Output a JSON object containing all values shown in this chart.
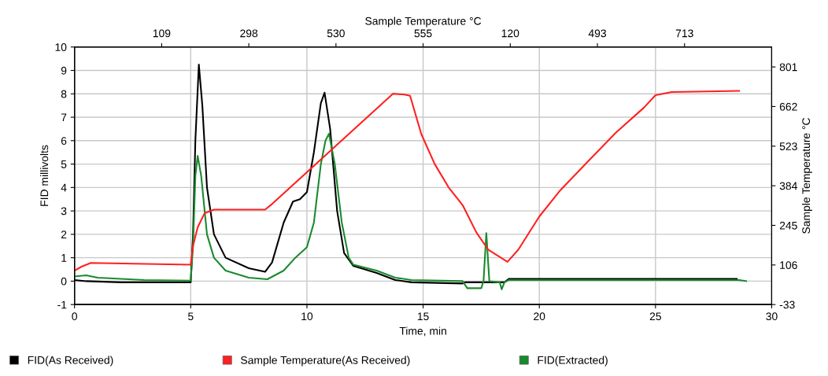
{
  "chart_data": {
    "type": "line",
    "xlabel": "Time, min",
    "ylabel": "FID millivolts",
    "y2label": "Sample Temperature °C",
    "x2label": "Sample Temperature °C",
    "xlim": [
      0,
      30
    ],
    "xticks": [
      0,
      5,
      10,
      15,
      20,
      25,
      30
    ],
    "ylim": [
      -1,
      10
    ],
    "yticks": [
      -1,
      0,
      1,
      2,
      3,
      4,
      5,
      6,
      7,
      8,
      9,
      10
    ],
    "y2lim": [
      -33,
      871
    ],
    "y2ticks": [
      -33,
      106,
      245,
      384,
      523,
      662,
      801
    ],
    "annotations": [
      "109",
      "298",
      "530",
      "555",
      "120",
      "493",
      "713"
    ],
    "grid": true,
    "legend": "bottom",
    "marker": "none",
    "line_style": "solid",
    "series": [
      {
        "name": "FID(As Received)",
        "color": "#000000",
        "x": [
          0,
          0.5,
          2,
          5.0,
          5.1,
          5.2,
          5.35,
          5.5,
          5.7,
          6,
          6.5,
          7.5,
          8.2,
          8.5,
          9,
          9.4,
          9.7,
          10,
          10.3,
          10.6,
          10.76,
          11,
          11.3,
          11.6,
          12,
          13,
          13.8,
          14.5,
          16.7,
          16.8,
          18.5,
          18.7,
          28.5
        ],
        "values": [
          0.05,
          0.0,
          -0.05,
          -0.05,
          2,
          6,
          9.25,
          7.5,
          4,
          2,
          1.0,
          0.55,
          0.4,
          0.8,
          2.5,
          3.4,
          3.5,
          3.8,
          5.5,
          7.6,
          8.05,
          6.5,
          3,
          1.2,
          0.65,
          0.35,
          0.05,
          -0.05,
          -0.1,
          -0.05,
          -0.05,
          0.1,
          0.1
        ]
      },
      {
        "name": "Sample Temperature(As Received)",
        "color": "#ff2020",
        "axis": "y2",
        "x": [
          0,
          0.3,
          0.7,
          5.0,
          5.1,
          5.3,
          5.6,
          6,
          8.2,
          8.5,
          13.7,
          14.2,
          14.44,
          14.92,
          15.5,
          16.1,
          16.7,
          17.3,
          17.8,
          18.63,
          19.1,
          20,
          20.9,
          22.1,
          23.3,
          24.5,
          25.0,
          25.7,
          28.6
        ],
        "values": [
          86,
          100,
          113,
          107,
          173,
          238,
          288,
          300,
          300,
          320,
          707,
          704,
          700,
          566,
          460,
          378,
          316,
          219,
          160,
          117,
          160,
          276,
          368,
          470,
          571,
          658,
          702,
          713,
          717
        ]
      },
      {
        "name": "FID(Extracted)",
        "color": "#1a8a2e",
        "x": [
          0,
          0.5,
          1,
          3,
          5.0,
          5.1,
          5.2,
          5.3,
          5.45,
          5.7,
          6,
          6.5,
          7.5,
          8.3,
          9,
          9.5,
          10,
          10.3,
          10.6,
          10.8,
          10.95,
          11.2,
          11.5,
          11.8,
          12,
          13,
          13.8,
          14.5,
          16.7,
          16.9,
          17.5,
          17.6,
          17.72,
          17.85,
          18.3,
          18.38,
          18.5,
          18.7,
          28.6,
          28.9
        ],
        "values": [
          0.2,
          0.25,
          0.15,
          0.05,
          0.02,
          1.5,
          4.5,
          5.35,
          4.5,
          2,
          1.0,
          0.45,
          0.15,
          0.08,
          0.45,
          1.0,
          1.45,
          2.5,
          5,
          6.0,
          6.3,
          5,
          2.5,
          1.0,
          0.7,
          0.45,
          0.15,
          0.05,
          0.0,
          -0.3,
          -0.3,
          0,
          2.05,
          0.0,
          -0.05,
          -0.35,
          -0.05,
          0.05,
          0.05,
          0.0
        ]
      }
    ]
  }
}
